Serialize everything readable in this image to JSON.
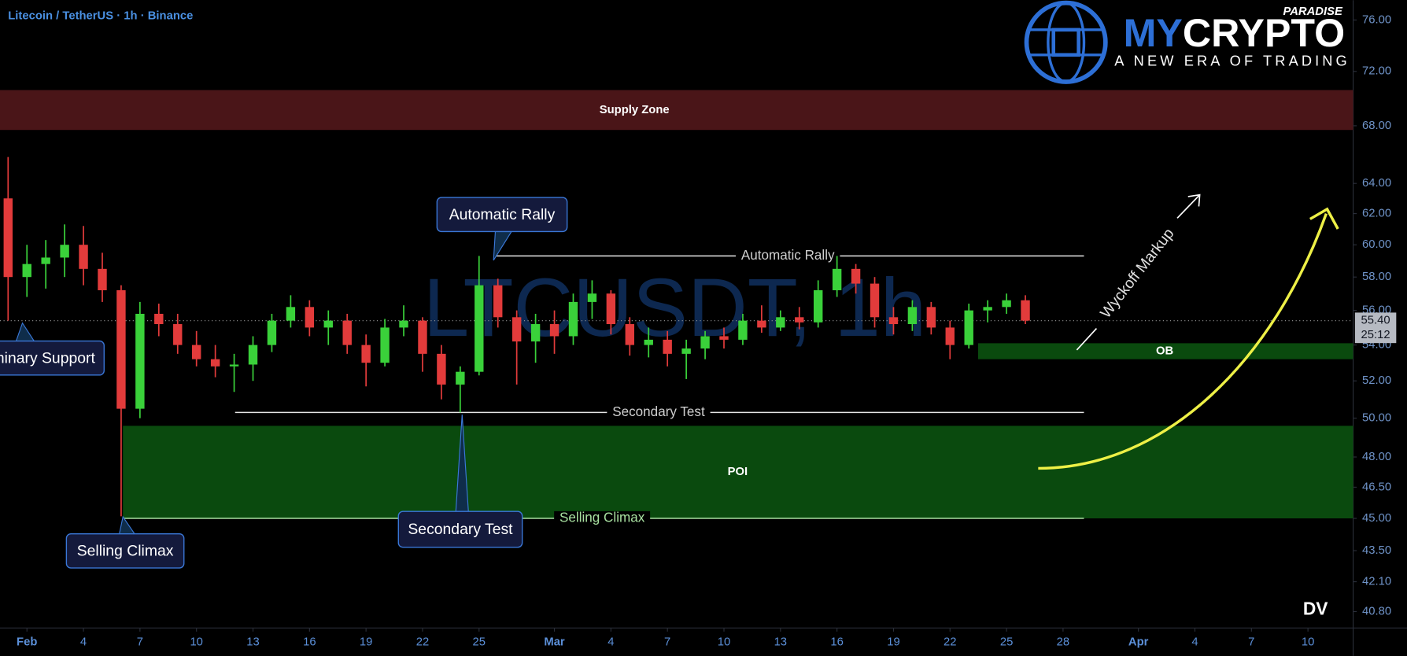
{
  "chart_data": {
    "type": "candlestick",
    "title": "Litecoin / TetherUS · 1h · Binance",
    "watermark": "LTCUSDT, 1h",
    "log_scale": true,
    "up_color": "#3ad13a",
    "down_color": "#e23b3b",
    "xlim": [
      -0.43,
      71.4
    ],
    "xticks": [
      {
        "value": 1,
        "label": "Feb"
      },
      {
        "value": 4,
        "label": "4"
      },
      {
        "value": 7,
        "label": "7"
      },
      {
        "value": 10,
        "label": "10"
      },
      {
        "value": 13,
        "label": "13"
      },
      {
        "value": 16,
        "label": "16"
      },
      {
        "value": 19,
        "label": "19"
      },
      {
        "value": 22,
        "label": "22"
      },
      {
        "value": 25,
        "label": "25"
      },
      {
        "value": 29,
        "label": "Mar"
      },
      {
        "value": 32,
        "label": "4"
      },
      {
        "value": 35,
        "label": "7"
      },
      {
        "value": 38,
        "label": "10"
      },
      {
        "value": 41,
        "label": "13"
      },
      {
        "value": 44,
        "label": "16"
      },
      {
        "value": 47,
        "label": "19"
      },
      {
        "value": 50,
        "label": "22"
      },
      {
        "value": 53,
        "label": "25"
      },
      {
        "value": 56,
        "label": "28"
      },
      {
        "value": 60,
        "label": "Apr"
      },
      {
        "value": 63,
        "label": "4"
      },
      {
        "value": 66,
        "label": "7"
      },
      {
        "value": 69,
        "label": "10"
      }
    ],
    "ylim": [
      40.1,
      77.6
    ],
    "yticks": [
      {
        "value": 76,
        "label": "76.00"
      },
      {
        "value": 72,
        "label": "72.00"
      },
      {
        "value": 68,
        "label": "68.00"
      },
      {
        "value": 64,
        "label": "64.00"
      },
      {
        "value": 62,
        "label": "62.00"
      },
      {
        "value": 60,
        "label": "60.00"
      },
      {
        "value": 58,
        "label": "58.00"
      },
      {
        "value": 56,
        "label": "56.00"
      },
      {
        "value": 54,
        "label": "54.00"
      },
      {
        "value": 52,
        "label": "52.00"
      },
      {
        "value": 50,
        "label": "50.00"
      },
      {
        "value": 48,
        "label": "48.00"
      },
      {
        "value": 46.5,
        "label": "46.50"
      },
      {
        "value": 45,
        "label": "45.00"
      },
      {
        "value": 43.5,
        "label": "43.50"
      },
      {
        "value": 42.1,
        "label": "42.10"
      },
      {
        "value": 40.8,
        "label": "40.80"
      }
    ],
    "x": [
      0,
      1,
      2,
      3,
      4,
      5,
      6,
      7,
      8,
      9,
      10,
      11,
      12,
      13,
      14,
      15,
      16,
      17,
      18,
      19,
      20,
      21,
      22,
      23,
      24,
      25,
      26,
      27,
      28,
      29,
      30,
      31,
      32,
      33,
      34,
      35,
      36,
      37,
      38,
      39,
      40,
      41,
      42,
      43,
      44,
      45,
      46,
      47,
      48,
      49,
      50,
      51,
      52,
      53,
      54
    ],
    "open": [
      63,
      58,
      58.8,
      59.2,
      60,
      58.5,
      57.2,
      50.5,
      55.8,
      55.2,
      54,
      53.2,
      52.8,
      52.9,
      54,
      55.4,
      56.2,
      55,
      55.4,
      54,
      53,
      55,
      55.4,
      53.5,
      51.8,
      52.5,
      57.5,
      55.6,
      54.2,
      55.2,
      54.5,
      56.5,
      57,
      55.2,
      54,
      54.3,
      53.5,
      53.8,
      54.5,
      54.3,
      55.4,
      55,
      55.6,
      55.3,
      57.2,
      58.5,
      57.6,
      55.6,
      55.2,
      56.2,
      55,
      54,
      56,
      56.2,
      56.6
    ],
    "high": [
      65.8,
      60,
      60.3,
      61.3,
      61.2,
      59.5,
      57.5,
      56.5,
      56.4,
      55.8,
      54.8,
      54,
      53.5,
      54.5,
      55.8,
      56.9,
      56.6,
      56,
      55.8,
      54.6,
      55.5,
      56.3,
      55.6,
      54,
      52.8,
      59.3,
      57.9,
      56,
      55.8,
      56,
      57,
      57.8,
      57.2,
      55.6,
      55,
      54.8,
      54.3,
      54.8,
      55,
      55.8,
      56.3,
      56,
      56.2,
      57.8,
      59.3,
      58.8,
      58,
      56.2,
      56.6,
      56.5,
      55.4,
      56.4,
      56.6,
      57,
      56.9
    ],
    "low": [
      55.4,
      56.8,
      57.3,
      58,
      57.5,
      56.5,
      45.1,
      50,
      54.5,
      53.5,
      52.8,
      52.2,
      51.4,
      52,
      53.6,
      55,
      54.5,
      54,
      53.5,
      51.7,
      52.8,
      54.5,
      52.5,
      51,
      50.3,
      52.3,
      55,
      51.8,
      53,
      53.5,
      54,
      55.5,
      54.6,
      53.4,
      53.3,
      52.8,
      52.1,
      53.2,
      53.8,
      54,
      54.7,
      54.8,
      54.9,
      55,
      56.8,
      57,
      55,
      54.6,
      54.8,
      54.6,
      53.2,
      53.8,
      55.3,
      55.8,
      55.2
    ],
    "close": [
      58,
      58.8,
      59.2,
      60,
      58.5,
      57.2,
      50.5,
      55.8,
      55.2,
      54,
      53.2,
      52.8,
      52.9,
      54,
      55.4,
      56.2,
      55,
      55.4,
      54,
      53,
      55,
      55.4,
      53.5,
      51.8,
      52.5,
      57.5,
      55.6,
      54.2,
      55.2,
      54.5,
      56.5,
      57,
      55.2,
      54,
      54.3,
      53.5,
      53.8,
      54.5,
      54.3,
      55.4,
      55,
      55.6,
      55.3,
      57.2,
      58.5,
      57.6,
      55.6,
      55.2,
      56.2,
      55,
      54,
      56,
      56.2,
      56.6,
      55.4
    ],
    "price_label": {
      "value": 55.4,
      "label": "55.40"
    },
    "countdown": "25:12",
    "zones": [
      {
        "name": "Supply Zone",
        "low": 67.7,
        "high": 70.6,
        "color": "#4a1518"
      },
      {
        "name": "POI",
        "low": 45.0,
        "high": 49.6,
        "color": "#0a4a0e"
      },
      {
        "name": "OB",
        "low": 53.2,
        "high": 54.1,
        "color": "#0a4a0e"
      }
    ],
    "levels": [
      {
        "name": "Automatic Rally",
        "value": 59.3,
        "color": "#e6e6e6"
      },
      {
        "name": "Secondary Test",
        "value": 50.3,
        "color": "#e6e6e6"
      },
      {
        "name": "Selling Climax",
        "value": 45,
        "color": "#a8e0a0"
      }
    ],
    "callouts": [
      "Automatic Rally",
      "Secondary Test",
      "Selling Climax",
      "Preliminary Support"
    ],
    "markup_label": "Wyckoff Markup",
    "logo": {
      "brand_a": "MY",
      "brand_b": "CRYPTO",
      "sub": "PARADISE",
      "tagline": "A NEW ERA OF TRADING"
    },
    "corner_label": "DV"
  }
}
